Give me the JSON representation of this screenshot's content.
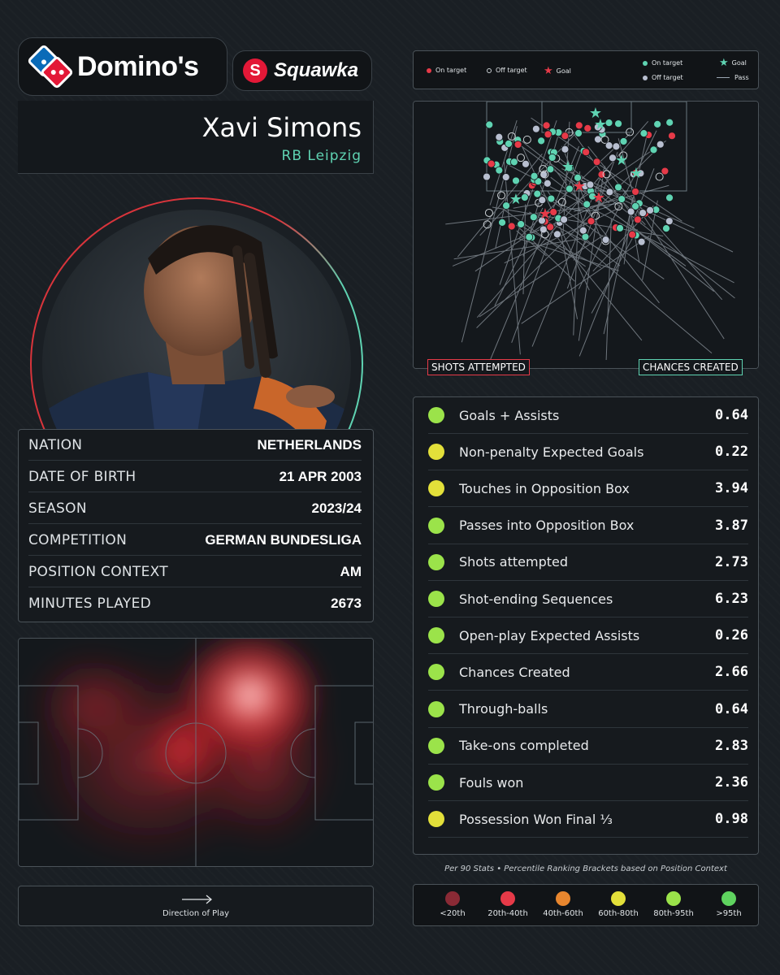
{
  "brand": {
    "sponsor": "Domino's",
    "partner": "Squawka"
  },
  "player": {
    "name": "Xavi Simons",
    "club": "RB Leipzig"
  },
  "info": [
    {
      "label": "NATION",
      "value": "NETHERLANDS"
    },
    {
      "label": "DATE OF BIRTH",
      "value": "21 APR 2003"
    },
    {
      "label": "SEASON",
      "value": "2023/24"
    },
    {
      "label": "COMPETITION",
      "value": "GERMAN BUNDESLIGA"
    },
    {
      "label": "POSITION CONTEXT",
      "value": "AM"
    },
    {
      "label": "MINUTES PLAYED",
      "value": "2673"
    }
  ],
  "heatmap": {
    "direction_label": "Direction of Play"
  },
  "shotmap": {
    "legend": {
      "on_target": "On target",
      "off_target": "Off target",
      "goal": "Goal",
      "pass_on_target": "On target",
      "pass_off_target": "Off target",
      "pass_goal": "Goal",
      "pass": "Pass"
    },
    "tag_left": "SHOTS ATTEMPTED",
    "tag_right": "CHANCES CREATED"
  },
  "stats": [
    {
      "label": "Goals + Assists",
      "value": "0.64",
      "color": "#9be34a"
    },
    {
      "label": "Non-penalty Expected Goals",
      "value": "0.22",
      "color": "#e3e03a"
    },
    {
      "label": "Touches in Opposition Box",
      "value": "3.94",
      "color": "#e3e03a"
    },
    {
      "label": "Passes into Opposition Box",
      "value": "3.87",
      "color": "#9be34a"
    },
    {
      "label": "Shots attempted",
      "value": "2.73",
      "color": "#9be34a"
    },
    {
      "label": "Shot-ending Sequences",
      "value": "6.23",
      "color": "#9be34a"
    },
    {
      "label": "Open-play Expected Assists",
      "value": "0.26",
      "color": "#9be34a"
    },
    {
      "label": "Chances Created",
      "value": "2.66",
      "color": "#9be34a"
    },
    {
      "label": "Through-balls",
      "value": "0.64",
      "color": "#9be34a"
    },
    {
      "label": "Take-ons completed",
      "value": "2.83",
      "color": "#9be34a"
    },
    {
      "label": "Fouls won",
      "value": "2.36",
      "color": "#9be34a"
    },
    {
      "label": "Possession Won Final ⅓",
      "value": "0.98",
      "color": "#e3e03a"
    }
  ],
  "footnote": "Per 90 Stats • Percentile Ranking Brackets based on Position Context",
  "percentiles": [
    {
      "label": "<20th",
      "color": "#8a2a35"
    },
    {
      "label": "20th-40th",
      "color": "#e63a48"
    },
    {
      "label": "40th-60th",
      "color": "#e8862e"
    },
    {
      "label": "60th-80th",
      "color": "#e3e03a"
    },
    {
      "label": "80th-95th",
      "color": "#9be34a"
    },
    {
      "label": ">95th",
      "color": "#5fd35f"
    }
  ]
}
